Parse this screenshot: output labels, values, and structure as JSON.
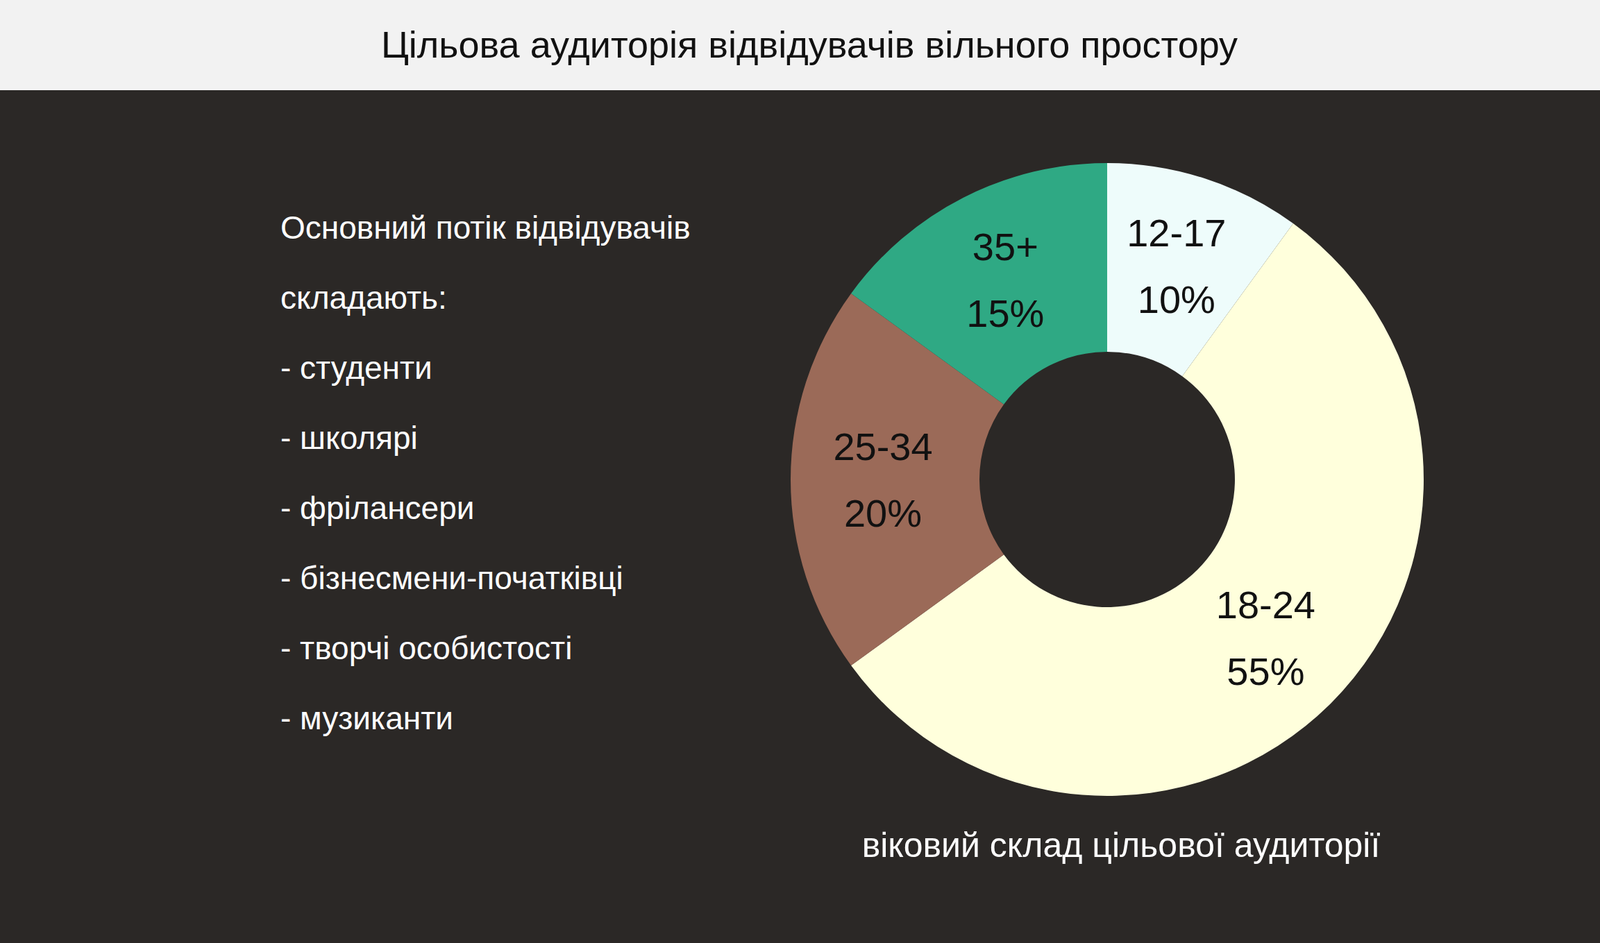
{
  "chart_data": {
    "type": "pie",
    "title": "Цільова аудиторія відвідувачів вільного простору",
    "subtitle": "віковий склад цільової аудиторії",
    "categories": [
      "12-17",
      "18-24",
      "25-34",
      "35+"
    ],
    "values": [
      10,
      55,
      20,
      15
    ],
    "value_labels": [
      "10%",
      "55%",
      "20%",
      "15%"
    ],
    "colors": [
      "#eefcfb",
      "#ffffdc",
      "#9b6a58",
      "#2fa984"
    ],
    "data_labels": true
  },
  "text_panel": {
    "heading": "Основний потік відвідувачів складають:",
    "items": [
      "- студенти",
      "- школярі",
      "- фрілансери",
      "- бізнесмени-початківці",
      "- творчі особистості",
      "- музиканти"
    ]
  }
}
